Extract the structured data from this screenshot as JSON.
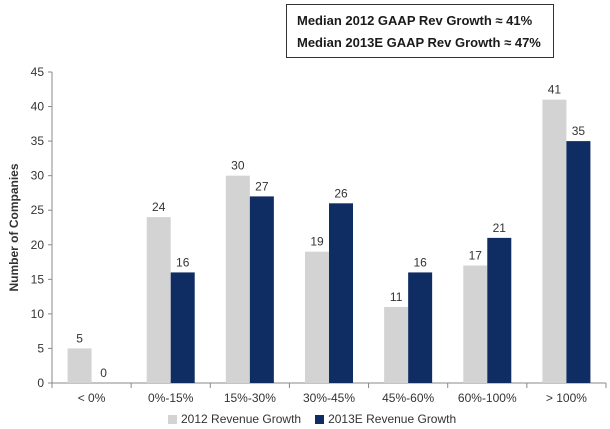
{
  "annotation": {
    "line1": "Median 2012 GAAP Rev Growth ≈ 41%",
    "line2": "Median 2013E GAAP Rev Growth ≈ 47%"
  },
  "colors": {
    "series_2012": "#d3d3d3",
    "series_2013": "#0f2d63",
    "axis": "#888888",
    "text": "#333333"
  },
  "chart_data": {
    "type": "bar",
    "title": "",
    "xlabel": "",
    "ylabel": "Number of Companies",
    "ylim": [
      0,
      45
    ],
    "yticks": [
      0,
      5,
      10,
      15,
      20,
      25,
      30,
      35,
      40,
      45
    ],
    "grid": false,
    "legend_position": "bottom",
    "categories": [
      "< 0%",
      "0%-15%",
      "15%-30%",
      "30%-45%",
      "45%-60%",
      "60%-100%",
      "> 100%"
    ],
    "series": [
      {
        "name": "2012 Revenue Growth",
        "values": [
          5,
          24,
          30,
          19,
          11,
          17,
          41
        ]
      },
      {
        "name": "2013E Revenue Growth",
        "values": [
          0,
          16,
          27,
          26,
          16,
          21,
          35
        ]
      }
    ]
  }
}
